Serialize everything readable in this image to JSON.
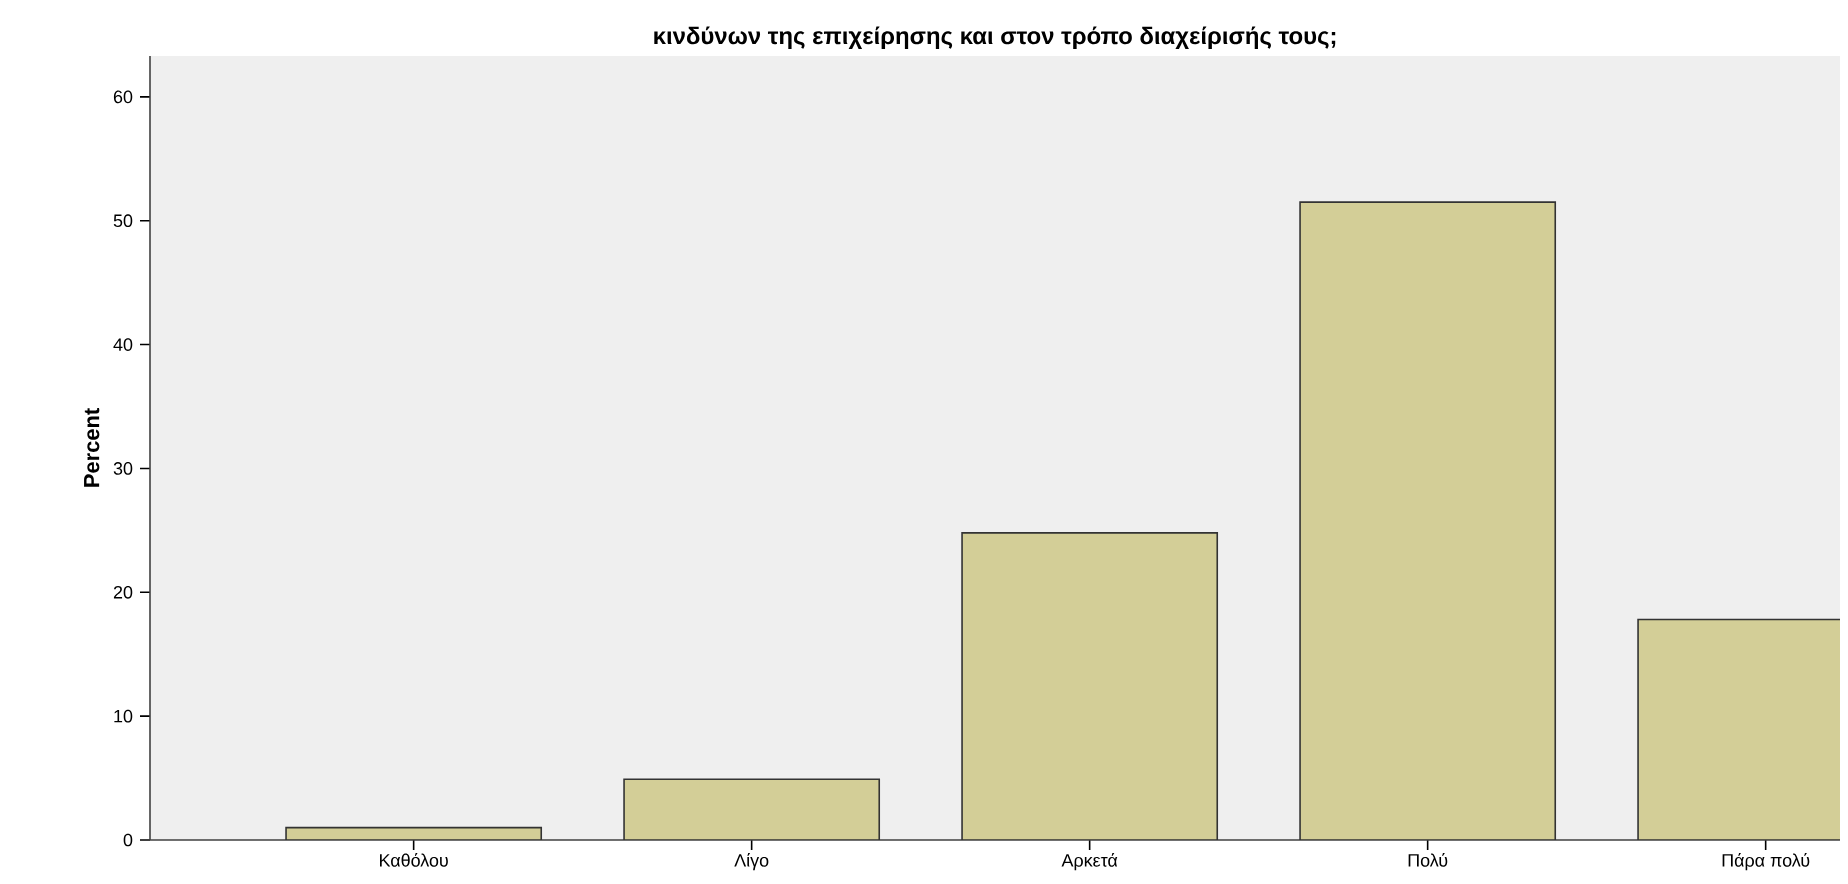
{
  "chart_data": {
    "type": "bar",
    "title": "κινδύνων της επιχείρησης και στον τρόπο διαχείρισής τους;",
    "ylabel": "Percent",
    "categories": [
      "Καθόλου",
      "Λίγο",
      "Αρκετά",
      "Πολύ",
      "Πάρα πολύ"
    ],
    "values": [
      1.0,
      4.9,
      24.8,
      51.5,
      17.8
    ],
    "color": "#d3ce97",
    "ylim": [
      0,
      63.3
    ],
    "yticks": [
      0,
      10,
      20,
      30,
      40,
      50,
      60
    ],
    "grid": false
  }
}
